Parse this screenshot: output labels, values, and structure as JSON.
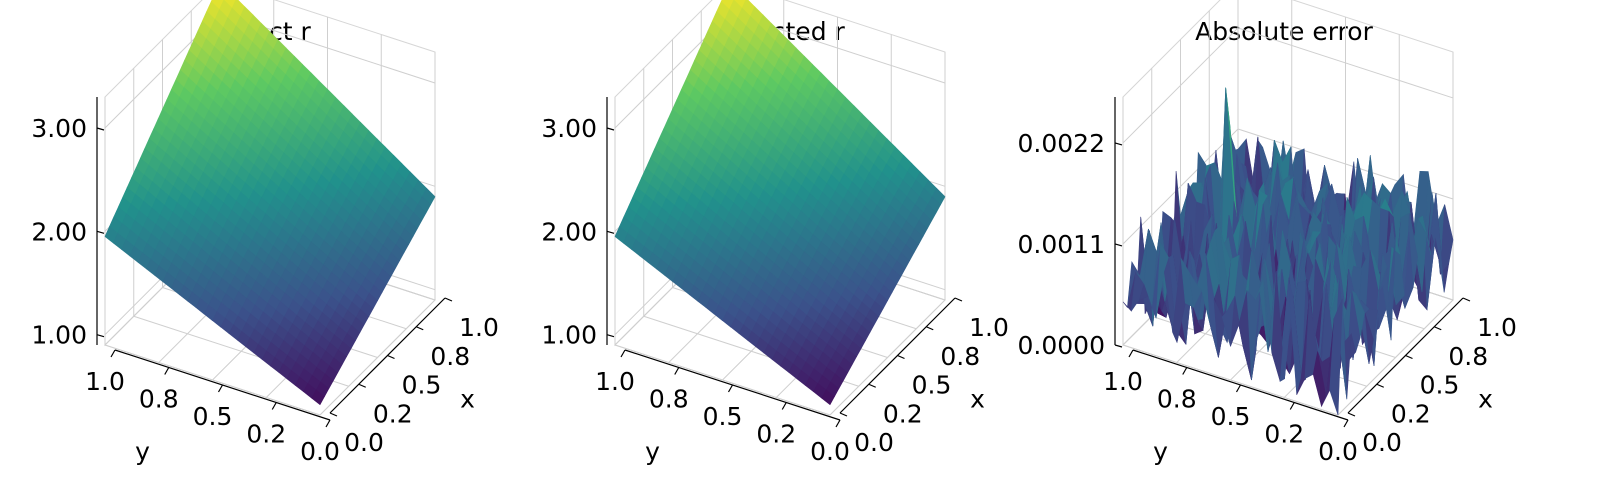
{
  "chart_data": [
    {
      "type": "surface3d",
      "title": "Exact r",
      "xlabel": "x",
      "ylabel": "y",
      "x_ticks": [
        "0.0",
        "0.2",
        "0.5",
        "0.8",
        "1.0"
      ],
      "y_ticks": [
        "1.0",
        "0.8",
        "0.5",
        "0.2",
        "0.0"
      ],
      "z_ticks": [
        "1.00",
        "2.00",
        "3.00"
      ],
      "z_tick_values": [
        1.0,
        2.0,
        3.0
      ],
      "zlim": [
        0.9,
        3.3
      ],
      "surface_corners": {
        "x0_y0": 1.0,
        "x1_y0": 1.9,
        "x0_y1": 1.95,
        "x1_y1": 3.3
      },
      "colormap": "viridis",
      "colors": [
        "#440154",
        "#3b528b",
        "#21918c",
        "#5ec962",
        "#fde725"
      ]
    },
    {
      "type": "surface3d",
      "title": "Predicted r",
      "xlabel": "x",
      "ylabel": "y",
      "x_ticks": [
        "0.0",
        "0.2",
        "0.5",
        "0.8",
        "1.0"
      ],
      "y_ticks": [
        "1.0",
        "0.8",
        "0.5",
        "0.2",
        "0.0"
      ],
      "z_ticks": [
        "1.00",
        "2.00",
        "3.00"
      ],
      "z_tick_values": [
        1.0,
        2.0,
        3.0
      ],
      "zlim": [
        0.9,
        3.3
      ],
      "surface_corners": {
        "x0_y0": 1.0,
        "x1_y0": 1.9,
        "x0_y1": 1.95,
        "x1_y1": 3.3
      },
      "colormap": "viridis",
      "colors": [
        "#440154",
        "#3b528b",
        "#21918c",
        "#5ec962",
        "#fde725"
      ]
    },
    {
      "type": "surface3d",
      "title": "Absolute error",
      "xlabel": "x",
      "ylabel": "y",
      "x_ticks": [
        "0.0",
        "0.2",
        "0.5",
        "0.8",
        "1.0"
      ],
      "y_ticks": [
        "1.0",
        "0.8",
        "0.5",
        "0.2",
        "0.0"
      ],
      "z_ticks": [
        "0.0000",
        "0.0011",
        "0.0022"
      ],
      "z_tick_values": [
        0.0,
        0.0011,
        0.0022
      ],
      "zlim": [
        0.0,
        0.0027
      ],
      "noise_max": 0.0024,
      "colormap": "viridis",
      "colors": [
        "#440154",
        "#3b528b",
        "#21918c",
        "#5ec962",
        "#fde725"
      ]
    }
  ]
}
